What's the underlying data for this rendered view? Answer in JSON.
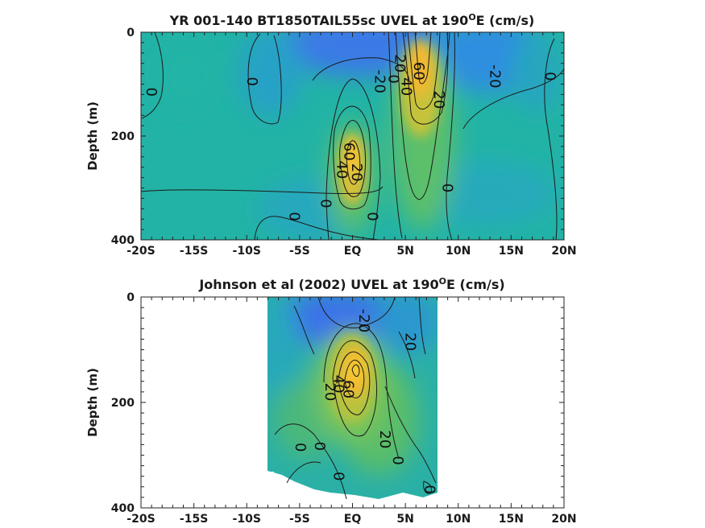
{
  "figure": {
    "colors": {
      "cold": "#3b73e8",
      "mid": "#1fb0b0",
      "warm": "#f3b82c",
      "hot": "#f7d23a",
      "contour": "#1b1b1b"
    }
  },
  "chart_data": [
    {
      "type": "heatmap",
      "title": "YR 001-140 BT1850TAIL55sc UVEL at 190",
      "title_sup": "O",
      "title_suffix": "E (cm/s)",
      "xlabel": "",
      "ylabel": "Depth (m)",
      "x_ticks": [
        "-20S",
        "-15S",
        "-10S",
        "-5S",
        "EQ",
        "5N",
        "10N",
        "15N",
        "20N"
      ],
      "x_tick_values": [
        -20,
        -15,
        -10,
        -5,
        0,
        5,
        10,
        15,
        20
      ],
      "y_ticks": [
        "0",
        "200",
        "400"
      ],
      "y_tick_values": [
        0,
        200,
        400
      ],
      "xlim": [
        -20,
        20
      ],
      "ylim": [
        400,
        0
      ],
      "data_xlim": [
        -20,
        20
      ],
      "contour_labels": [
        {
          "text": "0",
          "x": -19,
          "y": 115
        },
        {
          "text": "0",
          "x": -9.5,
          "y": 95
        },
        {
          "text": "-20",
          "x": 2.6,
          "y": 95
        },
        {
          "text": "20",
          "x": 4.5,
          "y": 60
        },
        {
          "text": "0",
          "x": 3.9,
          "y": 90
        },
        {
          "text": "40",
          "x": 5.1,
          "y": 105
        },
        {
          "text": "60",
          "x": 6.3,
          "y": 75
        },
        {
          "text": "20",
          "x": 8.2,
          "y": 130
        },
        {
          "text": "-20",
          "x": 13.5,
          "y": 85
        },
        {
          "text": "0",
          "x": 18.7,
          "y": 85
        },
        {
          "text": "60",
          "x": -0.3,
          "y": 230
        },
        {
          "text": "40",
          "x": -1.0,
          "y": 265
        },
        {
          "text": "20",
          "x": 0.4,
          "y": 270
        },
        {
          "text": "0",
          "x": -2.5,
          "y": 330
        },
        {
          "text": "0",
          "x": -5.5,
          "y": 355
        },
        {
          "text": "0",
          "x": 1.9,
          "y": 355
        },
        {
          "text": "0",
          "x": 9.0,
          "y": 300
        }
      ]
    },
    {
      "type": "heatmap",
      "title": "Johnson et al (2002) UVEL at 190",
      "title_sup": "O",
      "title_suffix": "E (cm/s)",
      "xlabel": "",
      "ylabel": "Depth (m)",
      "x_ticks": [
        "-20S",
        "-15S",
        "-10S",
        "-5S",
        "EQ",
        "5N",
        "10N",
        "15N",
        "20N"
      ],
      "x_tick_values": [
        -20,
        -15,
        -10,
        -5,
        0,
        5,
        10,
        15,
        20
      ],
      "y_ticks": [
        "0",
        "200",
        "400"
      ],
      "y_tick_values": [
        0,
        200,
        400
      ],
      "xlim": [
        -20,
        20
      ],
      "ylim": [
        400,
        0
      ],
      "data_xlim": [
        -8,
        8
      ],
      "contour_labels": [
        {
          "text": "-20",
          "x": 1.1,
          "y": 45
        },
        {
          "text": "20",
          "x": 5.5,
          "y": 85
        },
        {
          "text": "40",
          "x": -1.3,
          "y": 165
        },
        {
          "text": "20",
          "x": -2.1,
          "y": 180
        },
        {
          "text": "60",
          "x": -0.4,
          "y": 175
        },
        {
          "text": "20",
          "x": 3.1,
          "y": 270
        },
        {
          "text": "0",
          "x": -4.9,
          "y": 285
        },
        {
          "text": "0",
          "x": -3.1,
          "y": 283
        },
        {
          "text": "0",
          "x": 4.3,
          "y": 310
        },
        {
          "text": "0",
          "x": -1.3,
          "y": 340
        },
        {
          "text": "0",
          "x": 7.3,
          "y": 365
        }
      ]
    }
  ]
}
